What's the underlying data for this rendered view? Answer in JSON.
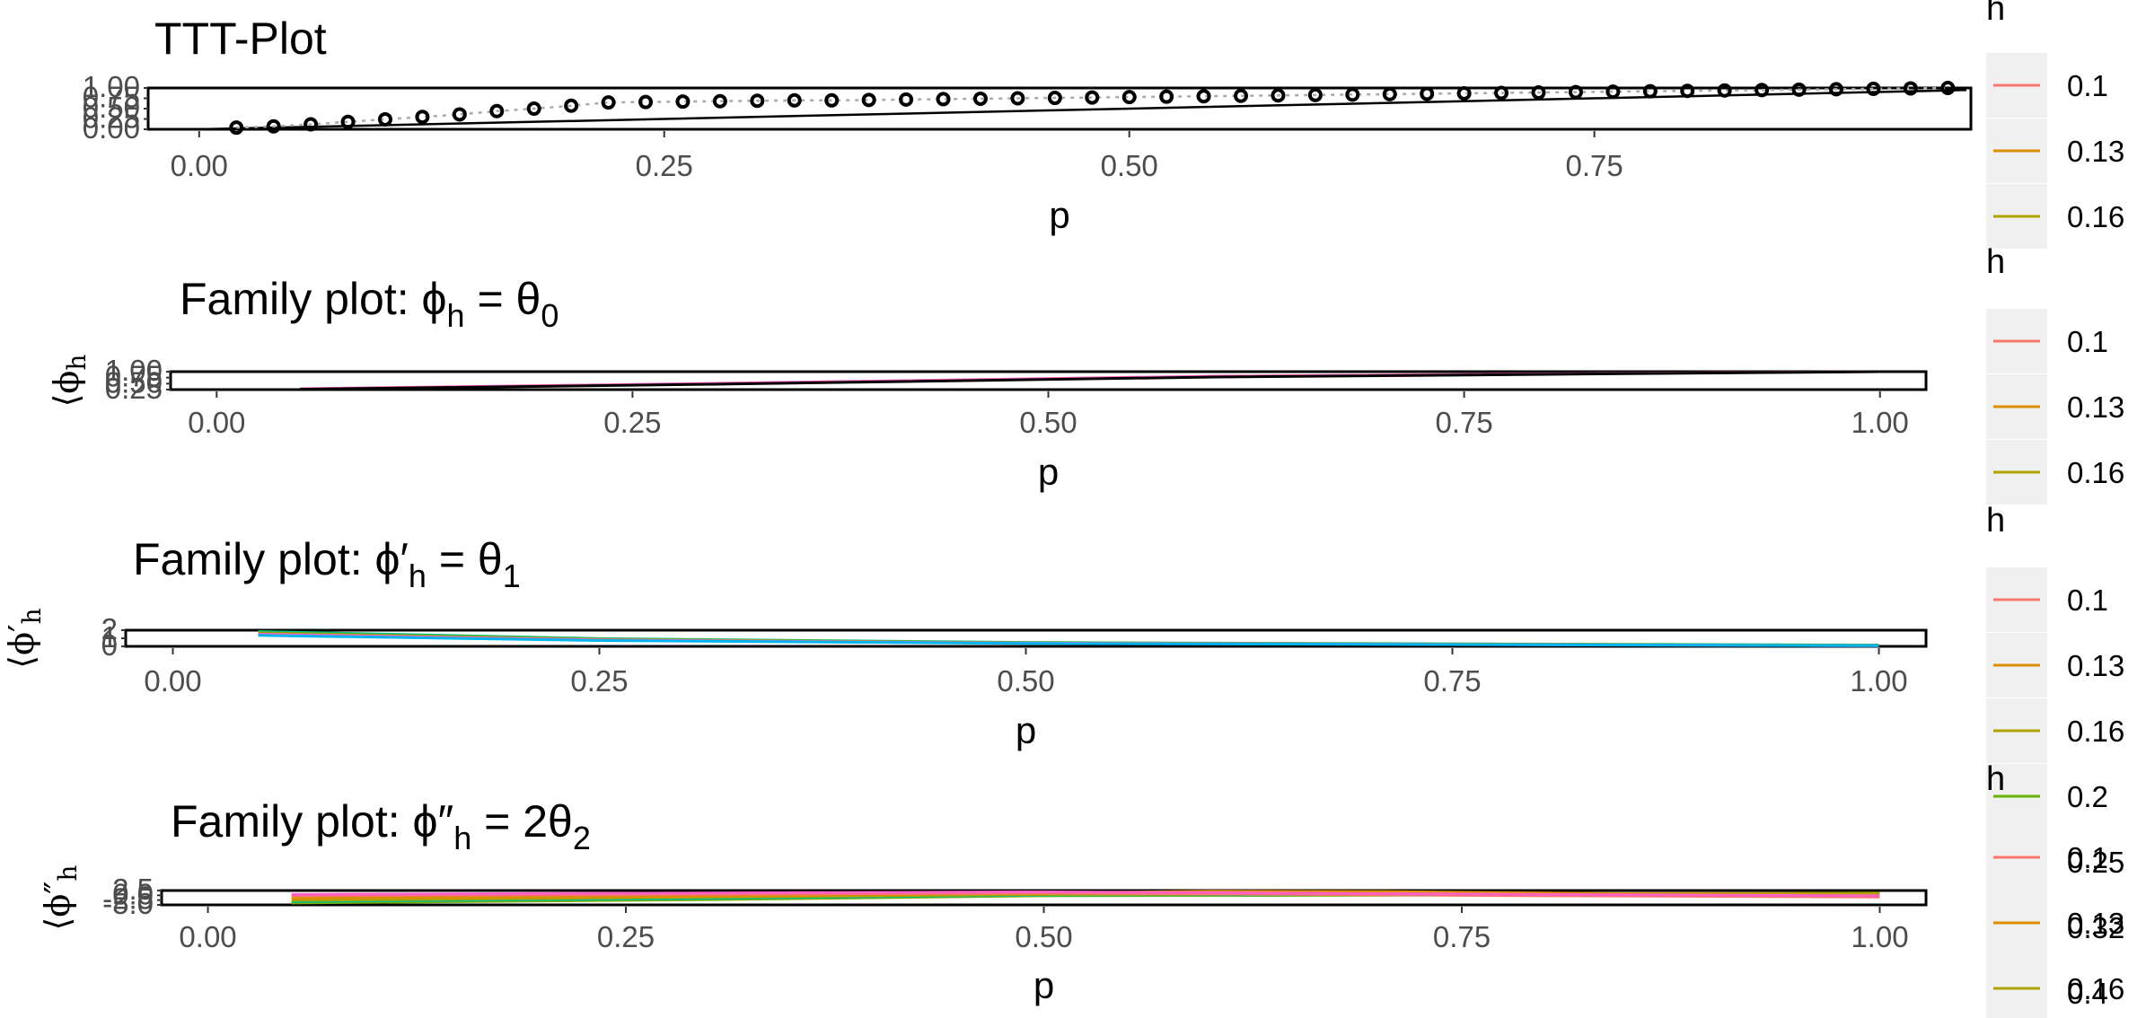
{
  "chart_data": [
    {
      "type": "scatter",
      "title": "TTT-Plot",
      "xlabel": "p",
      "ylabel": "",
      "xlim": [
        -0.025,
        0.95
      ],
      "ylim": [
        0,
        1
      ],
      "x_ticks": [
        0.0,
        0.25,
        0.5,
        0.75
      ],
      "x_tick_labels": [
        "0.00",
        "0.25",
        "0.50",
        "0.75"
      ],
      "y_tick_labels": [
        "0.00",
        "0.25",
        "0.50",
        "0.75",
        "1.00"
      ],
      "points_x": [
        0.02,
        0.04,
        0.06,
        0.08,
        0.1,
        0.12,
        0.14,
        0.16,
        0.18,
        0.2,
        0.22,
        0.24,
        0.26,
        0.28,
        0.3,
        0.32,
        0.34,
        0.36,
        0.38,
        0.4,
        0.42,
        0.44,
        0.46,
        0.48,
        0.5,
        0.52,
        0.54,
        0.56,
        0.58,
        0.6,
        0.62,
        0.64,
        0.66,
        0.68,
        0.7,
        0.72,
        0.74,
        0.76,
        0.78,
        0.8,
        0.82,
        0.84,
        0.86,
        0.88,
        0.9,
        0.92,
        0.94
      ],
      "points_y": [
        0.04,
        0.07,
        0.12,
        0.18,
        0.24,
        0.3,
        0.36,
        0.44,
        0.5,
        0.57,
        0.65,
        0.66,
        0.67,
        0.68,
        0.69,
        0.7,
        0.7,
        0.71,
        0.72,
        0.73,
        0.74,
        0.75,
        0.76,
        0.77,
        0.78,
        0.79,
        0.8,
        0.81,
        0.82,
        0.83,
        0.84,
        0.85,
        0.86,
        0.87,
        0.88,
        0.89,
        0.9,
        0.91,
        0.92,
        0.93,
        0.94,
        0.95,
        0.96,
        0.97,
        0.98,
        0.99,
        1.0
      ],
      "reference_line": [
        [
          0,
          0
        ],
        [
          1,
          1
        ]
      ],
      "legend": {
        "title": "h",
        "entries": [
          {
            "label": "0.1",
            "color": "#F8766D"
          },
          {
            "label": "0.13",
            "color": "#DB8E00"
          },
          {
            "label": "0.16",
            "color": "#AEA200"
          }
        ]
      }
    },
    {
      "type": "line",
      "title_prefix": "Family plot: ",
      "title_lhs": "ϕ",
      "title_lhs_sub": "h",
      "title_rhs_coef": "",
      "title_rhs": "θ",
      "title_rhs_sub": "0",
      "xlabel": "p",
      "ylabel_symbol": "ϕ",
      "ylabel_sub": "h",
      "xlim": [
        -0.025,
        1.025
      ],
      "ylim": [
        0,
        1
      ],
      "x_ticks": [
        0.0,
        0.25,
        0.5,
        0.75,
        1.0
      ],
      "x_tick_labels": [
        "0.00",
        "0.25",
        "0.50",
        "0.75",
        "1.00"
      ],
      "y_tick_labels": [
        "0.25",
        "0.50",
        "0.75",
        "1.00"
      ],
      "series": [
        {
          "color": "#FF61C3",
          "x": [
            0.05,
            0.3,
            0.6,
            1.0
          ],
          "y": [
            0.05,
            0.35,
            0.75,
            1.0
          ]
        },
        {
          "color": "#000000",
          "x": [
            0.05,
            0.3,
            0.6,
            1.0
          ],
          "y": [
            0.02,
            0.3,
            0.7,
            1.0
          ]
        }
      ],
      "legend": {
        "title": "h",
        "entries": [
          {
            "label": "0.1",
            "color": "#F8766D"
          },
          {
            "label": "0.13",
            "color": "#DB8E00"
          },
          {
            "label": "0.16",
            "color": "#AEA200"
          }
        ]
      }
    },
    {
      "type": "line",
      "title_prefix": "Family plot: ",
      "title_lhs": "ϕ′",
      "title_lhs_sub": "h",
      "title_rhs_coef": "",
      "title_rhs": "θ",
      "title_rhs_sub": "1",
      "xlabel": "p",
      "ylabel_symbol": "ϕ′",
      "ylabel_sub": "h",
      "xlim": [
        -0.025,
        1.025
      ],
      "ylim": [
        0,
        2.5
      ],
      "x_ticks": [
        0.0,
        0.25,
        0.5,
        0.75,
        1.0
      ],
      "x_tick_labels": [
        "0.00",
        "0.25",
        "0.50",
        "0.75",
        "1.00"
      ],
      "y_tick_labels": [
        "0",
        "1",
        "2"
      ],
      "series": [
        {
          "color": "#00C08B",
          "x": [
            0.05,
            0.25,
            0.5,
            1.0
          ],
          "y": [
            2.3,
            1.2,
            0.6,
            0.2
          ]
        },
        {
          "color": "#7CAE00",
          "x": [
            0.05,
            0.25,
            0.5,
            1.0
          ],
          "y": [
            2.1,
            1.1,
            0.55,
            0.15
          ]
        },
        {
          "color": "#FF61C3",
          "x": [
            0.05,
            0.25,
            0.5,
            1.0
          ],
          "y": [
            1.9,
            1.0,
            0.5,
            0.1
          ]
        },
        {
          "color": "#00B4EF",
          "x": [
            0.05,
            0.25,
            0.5,
            1.0
          ],
          "y": [
            1.7,
            0.9,
            0.45,
            0.1
          ]
        }
      ],
      "legend": {
        "title": "h",
        "entries": [
          {
            "label": "0.1",
            "color": "#F8766D"
          },
          {
            "label": "0.13",
            "color": "#DB8E00"
          },
          {
            "label": "0.16",
            "color": "#AEA200"
          },
          {
            "label": "0.2",
            "color": "#64B200"
          },
          {
            "label": "0.25",
            "color": "#00BD5C"
          },
          {
            "label": "0.32",
            "color": "#00C1A7"
          },
          {
            "label": "0.4",
            "color": "#00BADE"
          }
        ]
      }
    },
    {
      "type": "line",
      "title_prefix": "Family plot: ",
      "title_lhs": "ϕ″",
      "title_lhs_sub": "h",
      "title_rhs_coef": "2",
      "title_rhs": "θ",
      "title_rhs_sub": "2",
      "xlabel": "p",
      "ylabel_symbol": "ϕ″",
      "ylabel_sub": "h",
      "xlim": [
        -0.025,
        1.025
      ],
      "ylim": [
        -10,
        1
      ],
      "x_ticks": [
        0.0,
        0.25,
        0.5,
        0.75,
        1.0
      ],
      "x_tick_labels": [
        "0.00",
        "0.25",
        "0.50",
        "0.75",
        "1.00"
      ],
      "y_tick_labels": [
        "-5.0",
        "-2.5",
        "0.0",
        "2.5"
      ],
      "series": [
        {
          "color": "#7CAE00",
          "x": [
            0.05,
            0.3,
            0.5,
            1.0
          ],
          "y": [
            -8.5,
            -6,
            -3,
            -2
          ]
        },
        {
          "color": "#00C08B",
          "x": [
            0.05,
            0.3,
            0.5,
            1.0
          ],
          "y": [
            -7.5,
            -5,
            -2.5,
            -1.5
          ]
        },
        {
          "color": "#AEA200",
          "x": [
            0.05,
            0.3,
            0.5,
            1.0
          ],
          "y": [
            -6.5,
            -4,
            -2,
            -1
          ]
        },
        {
          "color": "#DB8E00",
          "x": [
            0.05,
            0.35,
            0.6,
            0.7,
            1.0
          ],
          "y": [
            -5,
            -3,
            0.5,
            0.2,
            -3
          ]
        },
        {
          "color": "#F8766D",
          "x": [
            0.05,
            0.5,
            0.8,
            1.0
          ],
          "y": [
            -3,
            -1,
            -3,
            -4
          ]
        },
        {
          "color": "#FF61C3",
          "x": [
            0.05,
            0.5,
            0.8,
            1.0
          ],
          "y": [
            -2,
            0,
            -2,
            -3
          ]
        }
      ],
      "legend": {
        "title": "h",
        "entries": [
          {
            "label": "0.1",
            "color": "#F8766D"
          },
          {
            "label": "0.13",
            "color": "#DB8E00"
          },
          {
            "label": "0.16",
            "color": "#AEA200"
          },
          {
            "label": "0.2",
            "color": "#64B200"
          },
          {
            "label": "0.25",
            "color": "#00BD5C"
          },
          {
            "label": "0.32",
            "color": "#00C1A7"
          },
          {
            "label": "0.4",
            "color": "#00BADE"
          }
        ]
      }
    }
  ]
}
